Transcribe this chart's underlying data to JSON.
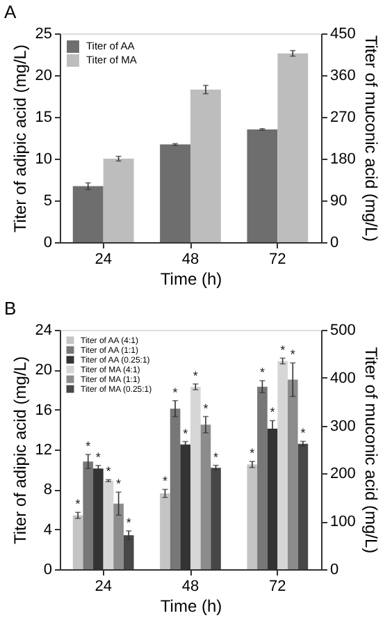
{
  "chart_data": [
    {
      "type": "bar",
      "title": "A",
      "categories": [
        "24",
        "48",
        "72"
      ],
      "xlabel": "Time (h)",
      "ylabel": "Titer of adipic acid (mg/L)",
      "y2label": "Titer of muconic acid (mg/L)",
      "ylim": [
        0,
        25
      ],
      "yticks": [
        0,
        5,
        10,
        15,
        20,
        25
      ],
      "y2lim": [
        0,
        450
      ],
      "y2ticks": [
        0,
        90,
        180,
        270,
        360,
        450
      ],
      "legend": "top left",
      "grid": false,
      "series": [
        {
          "name": "Titer of AA",
          "color": "#6e6e6e",
          "values": [
            6.7,
            11.7,
            13.5
          ],
          "errors": [
            0.4,
            0.1,
            0.1
          ]
        },
        {
          "name": "Titer of MA",
          "color": "#bdbdbd",
          "axis": "y2",
          "values": [
            180,
            329,
            407
          ],
          "errors": [
            5,
            9,
            6
          ]
        }
      ]
    },
    {
      "type": "bar",
      "title": "B",
      "categories": [
        "24",
        "48",
        "72"
      ],
      "xlabel": "Time (h)",
      "ylabel": "Titer of adipic acid (mg/L)",
      "y2label": "Titer of muconic acid (mg/L)",
      "ylim": [
        0,
        24
      ],
      "yticks": [
        0,
        4,
        8,
        12,
        16,
        20,
        24
      ],
      "y2lim": [
        0,
        500
      ],
      "y2ticks": [
        0,
        100,
        200,
        300,
        400,
        500
      ],
      "legend": "top left",
      "grid": false,
      "series": [
        {
          "name": "Titer of AA (4:1)",
          "color": "#c4c4c4",
          "values": [
            5.4,
            7.6,
            10.5
          ],
          "errors": [
            0.3,
            0.4,
            0.3
          ],
          "value_labels": [
            "*",
            "*",
            "*"
          ]
        },
        {
          "name": "Titer of AA (1:1)",
          "color": "#777777",
          "values": [
            10.8,
            16.1,
            18.3
          ],
          "errors": [
            0.7,
            0.8,
            0.6
          ],
          "value_labels": [
            "*",
            "*",
            "*"
          ]
        },
        {
          "name": "Titer of AA (0.25:1)",
          "color": "#333333",
          "values": [
            10.1,
            12.5,
            14.1
          ],
          "errors": [
            0.3,
            0.3,
            0.8
          ],
          "value_labels": [
            "*",
            "*",
            "*"
          ]
        },
        {
          "name": "Titer of MA (4:1)",
          "color": "#d6d6d6",
          "axis": "y2",
          "values": [
            185,
            381,
            435
          ],
          "errors": [
            2,
            6,
            6
          ],
          "value_labels": [
            "*",
            "*",
            "*"
          ]
        },
        {
          "name": "Titer of MA (1:1)",
          "color": "#8c8c8c",
          "axis": "y2",
          "values": [
            137,
            302,
            396
          ],
          "errors": [
            24,
            17,
            35
          ],
          "value_labels": [
            "*",
            "*",
            "*"
          ]
        },
        {
          "name": "Titer of MA (0.25:1)",
          "color": "#474747",
          "axis": "y2",
          "values": [
            71,
            212,
            262
          ],
          "errors": [
            9,
            5,
            5
          ],
          "value_labels": [
            "*",
            "*",
            "*"
          ]
        }
      ]
    }
  ]
}
